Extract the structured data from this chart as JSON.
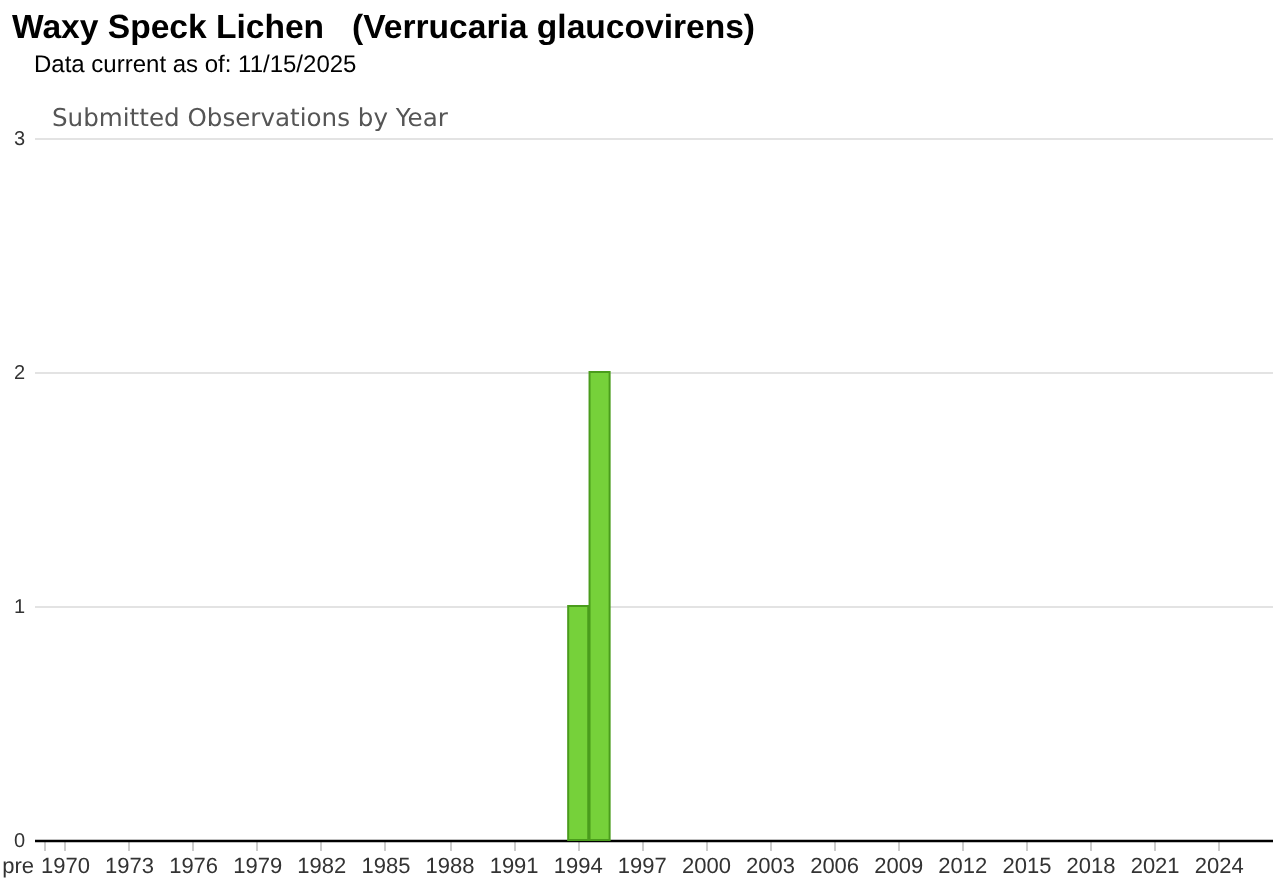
{
  "chart_data": {
    "type": "bar",
    "title": "Waxy Speck Lichen   (Verrucaria glaucovirens)",
    "subtitle": "Data current as of: 11/15/2025",
    "annotations": [
      "Submitted Observations by Year"
    ],
    "categories": [
      "pre",
      "1970",
      null,
      null,
      "1973",
      null,
      null,
      "1976",
      null,
      null,
      "1979",
      null,
      null,
      "1982",
      null,
      null,
      "1985",
      null,
      null,
      "1988",
      null,
      null,
      "1991",
      null,
      null,
      "1994",
      null,
      null,
      "1997",
      null,
      null,
      "2000",
      null,
      null,
      "2003",
      null,
      null,
      "2006",
      null,
      null,
      "2009",
      null,
      null,
      "2012",
      null,
      null,
      "2015",
      null,
      null,
      "2018",
      null,
      null,
      "2021",
      null,
      null,
      "2024",
      null,
      null
    ],
    "values": [
      0,
      0,
      0,
      0,
      0,
      0,
      0,
      0,
      0,
      0,
      0,
      0,
      0,
      0,
      0,
      0,
      0,
      0,
      0,
      0,
      0,
      0,
      0,
      0,
      0,
      1,
      2,
      0,
      0,
      0,
      0,
      0,
      0,
      0,
      0,
      0,
      0,
      0,
      0,
      0,
      0,
      0,
      0,
      0,
      0,
      0,
      0,
      0,
      0,
      0,
      0,
      0,
      0,
      0,
      0,
      0,
      0,
      0
    ],
    "color": "#76d13a",
    "ylim": [
      0,
      3
    ],
    "yticks": [
      0,
      1,
      2,
      3
    ],
    "grid": "y"
  }
}
